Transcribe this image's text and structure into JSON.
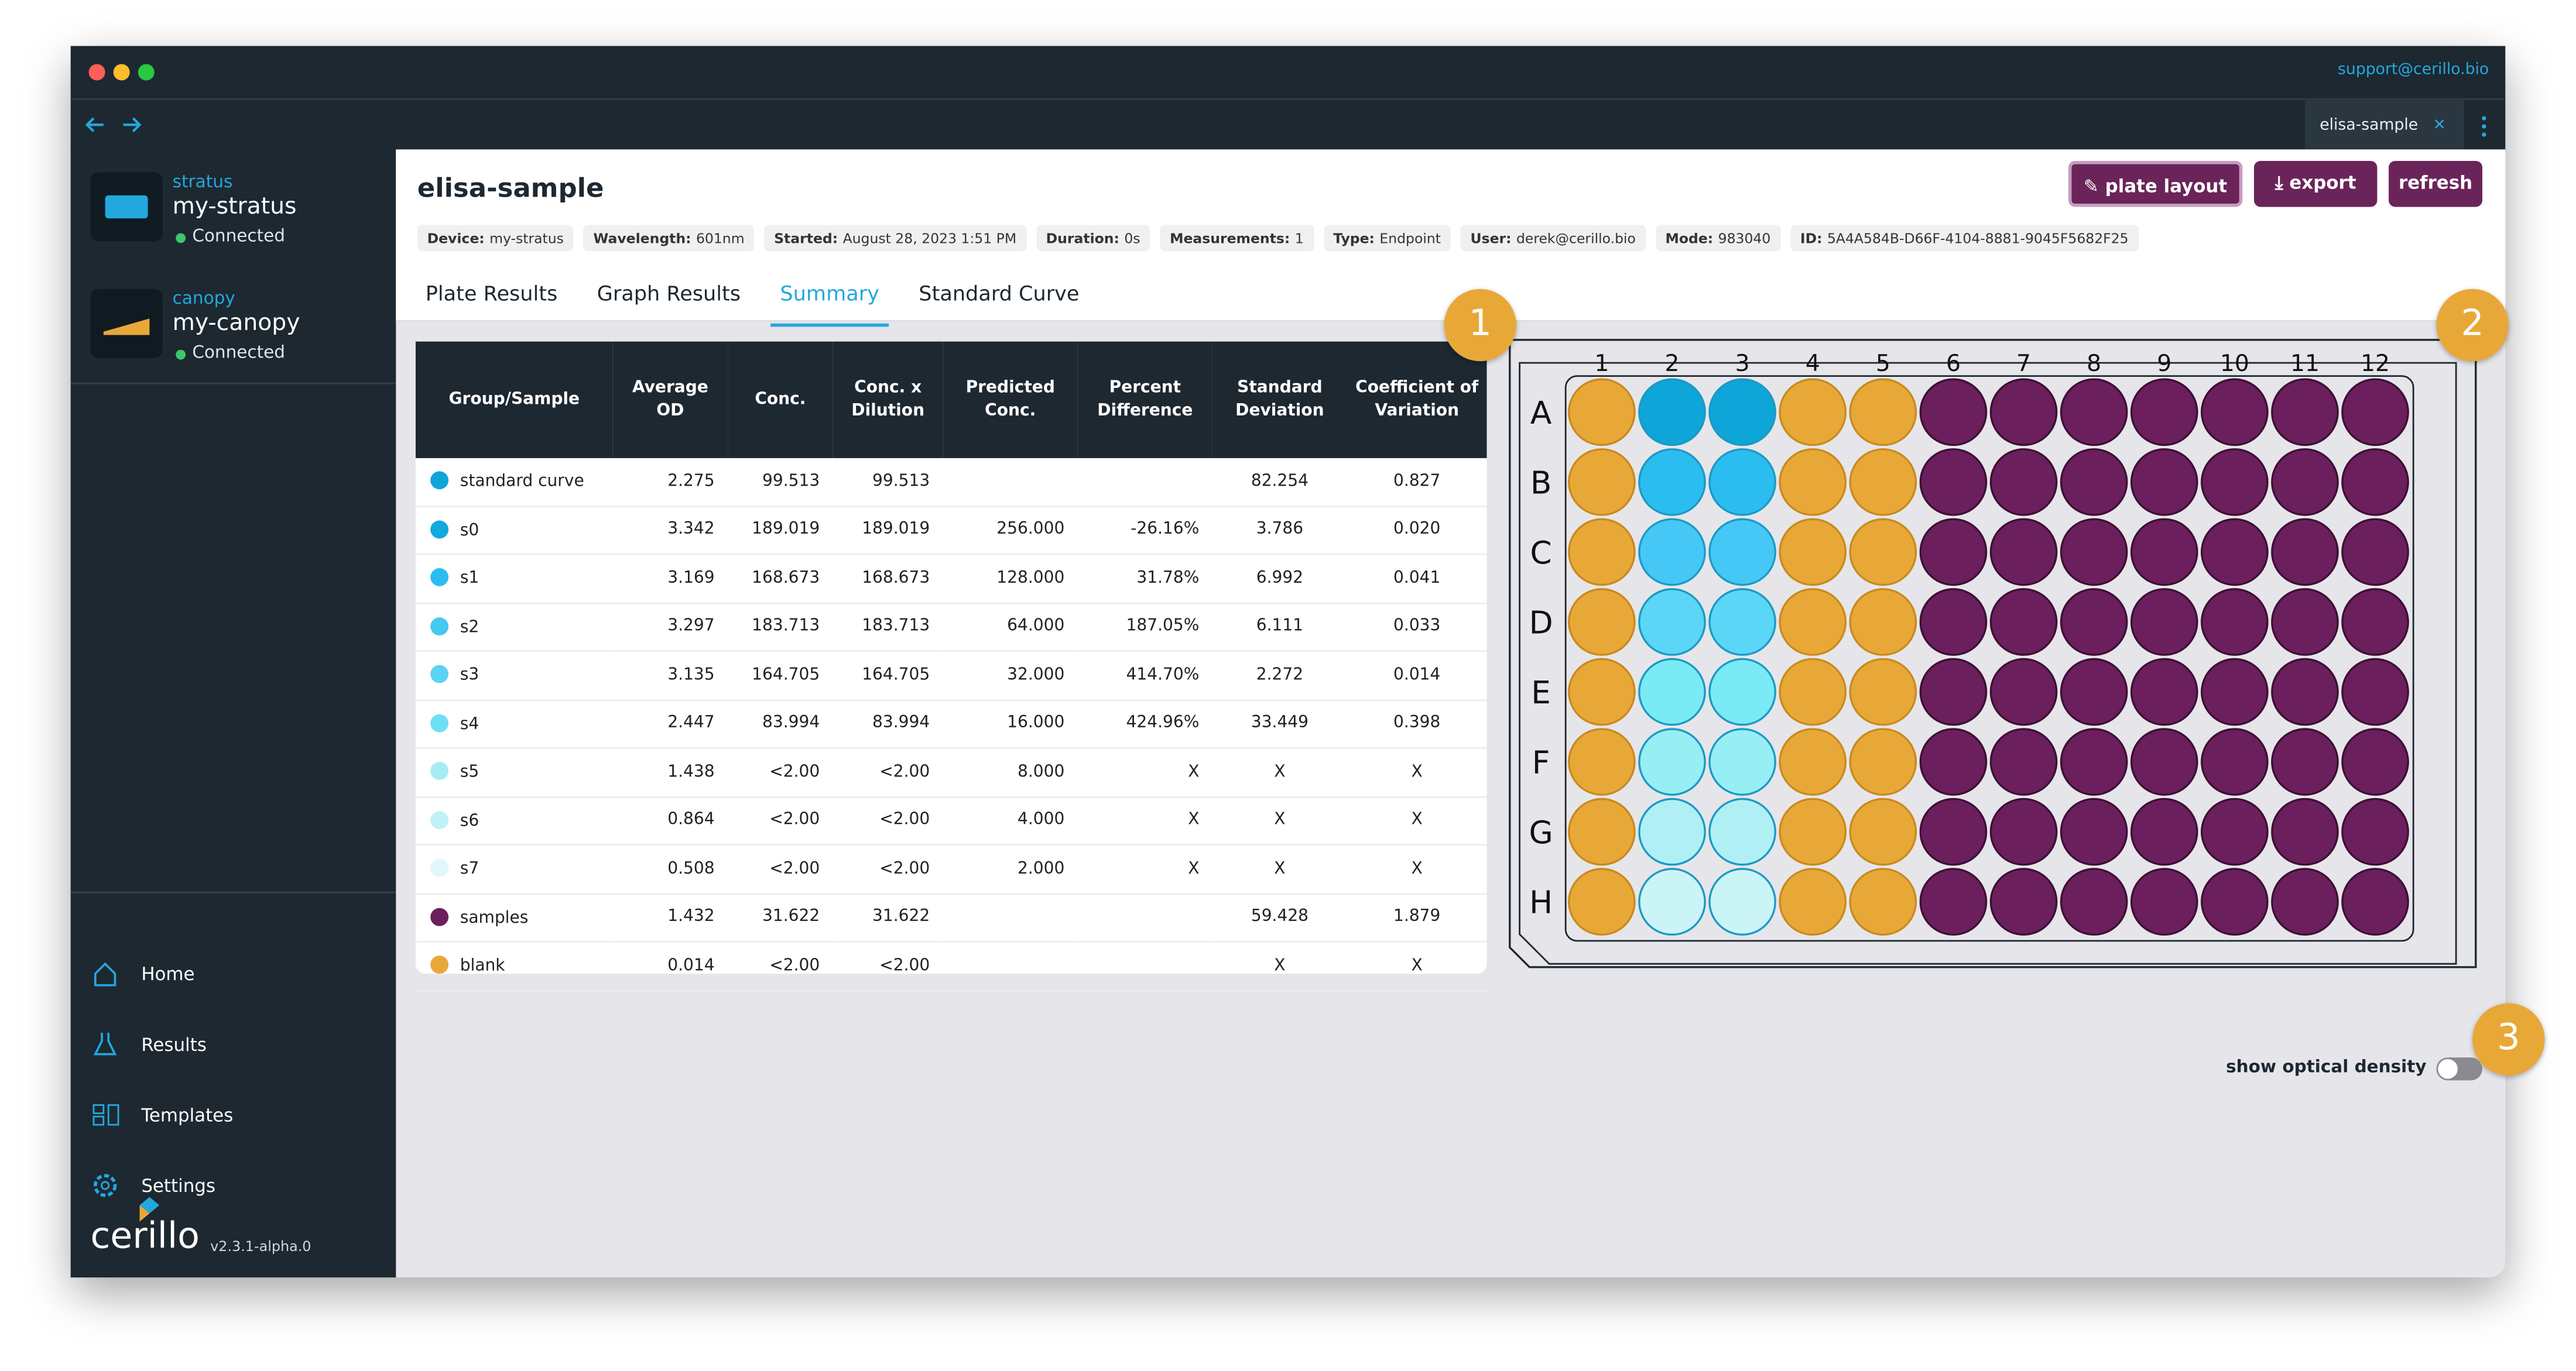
{
  "window": {
    "support": "support@cerillo.bio",
    "tab": "elisa-sample"
  },
  "sidebar": {
    "devices": [
      {
        "type": "stratus",
        "name": "my-stratus",
        "status": "Connected"
      },
      {
        "type": "canopy",
        "name": "my-canopy",
        "status": "Connected"
      }
    ],
    "nav": [
      "Home",
      "Results",
      "Templates",
      "Settings"
    ],
    "logo": "cerillo",
    "version": "v2.3.1-alpha.0"
  },
  "header": {
    "title": "elisa-sample",
    "buttons": [
      "plate layout",
      "export",
      "refresh"
    ],
    "meta": [
      {
        "label": "Device:",
        "value": "my-stratus"
      },
      {
        "label": "Wavelength:",
        "value": "601nm"
      },
      {
        "label": "Started:",
        "value": "August 28, 2023 1:51 PM"
      },
      {
        "label": "Duration:",
        "value": "0s"
      },
      {
        "label": "Measurements:",
        "value": "1"
      },
      {
        "label": "Type:",
        "value": "Endpoint"
      },
      {
        "label": "User:",
        "value": "derek@cerillo.bio"
      },
      {
        "label": "Mode:",
        "value": "983040"
      },
      {
        "label": "ID:",
        "value": "5A4A584B-D66F-4104-8881-9045F5682F25"
      }
    ]
  },
  "tabs": {
    "items": [
      "Plate Results",
      "Graph Results",
      "Summary",
      "Standard Curve"
    ],
    "active": 2
  },
  "table": {
    "headers": [
      "Group/Sample",
      "Average OD",
      "Conc.",
      "Conc. x Dilution",
      "Predicted Conc.",
      "Percent Difference",
      "Standard Deviation",
      "Coefficient of Variation"
    ],
    "rows": [
      [
        "standard curve",
        "2.275",
        "99.513",
        "99.513",
        null,
        null,
        "82.254",
        "0.827"
      ],
      [
        "s0",
        "3.342",
        "189.019",
        "189.019",
        "256.000",
        "-26.16%",
        "3.786",
        "0.020"
      ],
      [
        "s1",
        "3.169",
        "168.673",
        "168.673",
        "128.000",
        "31.78%",
        "6.992",
        "0.041"
      ],
      [
        "s2",
        "3.297",
        "183.713",
        "183.713",
        "64.000",
        "187.05%",
        "6.111",
        "0.033"
      ],
      [
        "s3",
        "3.135",
        "164.705",
        "164.705",
        "32.000",
        "414.70%",
        "2.272",
        "0.014"
      ],
      [
        "s4",
        "2.447",
        "83.994",
        "83.994",
        "16.000",
        "424.96%",
        "33.449",
        "0.398"
      ],
      [
        "s5",
        "1.438",
        "<2.00",
        "<2.00",
        "8.000",
        "X",
        "X",
        "X"
      ],
      [
        "s6",
        "0.864",
        "<2.00",
        "<2.00",
        "4.000",
        "X",
        "X",
        "X"
      ],
      [
        "s7",
        "0.508",
        "<2.00",
        "<2.00",
        "2.000",
        "X",
        "X",
        "X"
      ],
      [
        "samples",
        "1.432",
        "31.622",
        "31.622",
        null,
        null,
        "59.428",
        "1.879"
      ],
      [
        "blank",
        "0.014",
        "<2.00",
        "<2.00",
        null,
        null,
        "X",
        "X"
      ]
    ]
  },
  "plate": {
    "rows": [
      "A",
      "B",
      "C",
      "D",
      "E",
      "F",
      "G",
      "H"
    ],
    "columns": [
      "1",
      "2",
      "3",
      "4",
      "5",
      "6",
      "7",
      "8",
      "9",
      "10",
      "11",
      "12"
    ]
  },
  "callouts": [
    "1",
    "2",
    "3"
  ],
  "toggle": "show optical density"
}
